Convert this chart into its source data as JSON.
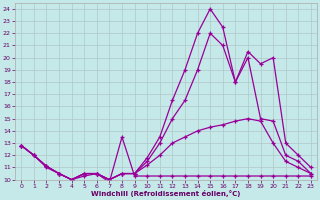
{
  "xlabel": "Windchill (Refroidissement éolien,°C)",
  "bg_color": "#c5e8e8",
  "grid_color": "#b0c8c8",
  "line_color": "#990099",
  "xlim": [
    -0.5,
    23.5
  ],
  "ylim": [
    10,
    24.5
  ],
  "yticks": [
    10,
    11,
    12,
    13,
    14,
    15,
    16,
    17,
    18,
    19,
    20,
    21,
    22,
    23,
    24
  ],
  "xticks": [
    0,
    1,
    2,
    3,
    4,
    5,
    6,
    7,
    8,
    9,
    10,
    11,
    12,
    13,
    14,
    15,
    16,
    17,
    18,
    19,
    20,
    21,
    22,
    23
  ],
  "line1_x": [
    0,
    1,
    2,
    3,
    4,
    5,
    6,
    7,
    8,
    9,
    10,
    11,
    12,
    13,
    14,
    15,
    16,
    17,
    18,
    19,
    20,
    21,
    22,
    23
  ],
  "line1_y": [
    12.8,
    12.0,
    11.0,
    10.5,
    10.0,
    10.3,
    10.5,
    9.8,
    13.5,
    10.3,
    10.3,
    10.3,
    10.3,
    10.3,
    10.3,
    10.3,
    10.3,
    10.3,
    10.3,
    10.3,
    10.3,
    10.3,
    10.3,
    10.3
  ],
  "line2_x": [
    0,
    1,
    2,
    3,
    4,
    5,
    6,
    7,
    8,
    9,
    10,
    11,
    12,
    13,
    14,
    15,
    16,
    17,
    18,
    19,
    20,
    21,
    22,
    23
  ],
  "line2_y": [
    12.8,
    12.0,
    11.1,
    10.5,
    10.0,
    10.5,
    10.5,
    10.0,
    10.5,
    10.5,
    11.2,
    12.0,
    13.0,
    13.5,
    14.0,
    14.3,
    14.5,
    14.8,
    15.0,
    14.8,
    13.0,
    11.5,
    11.0,
    10.5
  ],
  "line3_x": [
    0,
    1,
    2,
    3,
    4,
    5,
    6,
    7,
    8,
    9,
    10,
    11,
    12,
    13,
    14,
    15,
    16,
    17,
    18,
    19,
    20,
    21,
    22,
    23
  ],
  "line3_y": [
    12.8,
    12.0,
    11.1,
    10.5,
    10.0,
    10.5,
    10.5,
    10.0,
    10.5,
    10.5,
    11.5,
    13.0,
    15.0,
    16.5,
    19.0,
    22.0,
    21.0,
    18.0,
    20.0,
    15.0,
    14.8,
    12.0,
    11.5,
    10.5
  ],
  "line4_x": [
    0,
    1,
    2,
    3,
    4,
    5,
    6,
    7,
    8,
    9,
    10,
    11,
    12,
    13,
    14,
    15,
    16,
    17,
    18,
    19,
    20,
    21,
    22,
    23
  ],
  "line4_y": [
    12.8,
    12.0,
    11.1,
    10.5,
    10.0,
    10.5,
    10.5,
    10.0,
    10.5,
    10.5,
    11.8,
    13.5,
    16.5,
    19.0,
    22.0,
    24.0,
    22.5,
    18.0,
    20.5,
    19.5,
    20.0,
    13.0,
    12.0,
    11.0
  ]
}
